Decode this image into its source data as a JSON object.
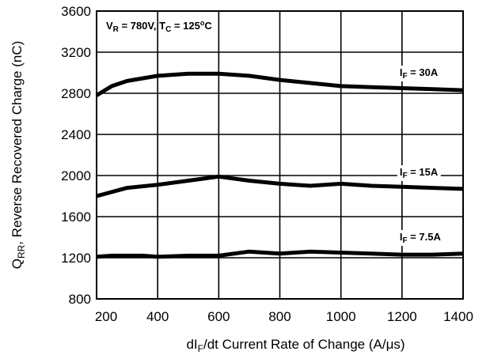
{
  "chart_data": {
    "type": "line",
    "xlabel": {
      "pre": "dI",
      "sub": "F",
      "post": "/dt Current Rate of Change (A/μs)"
    },
    "ylabel": {
      "pre": "Q",
      "sub": "RR",
      "post": ", Reverse Recovered Charge (nC)"
    },
    "xlim": [
      200,
      1400
    ],
    "ylim": [
      800,
      3600
    ],
    "xticks": [
      200,
      400,
      600,
      800,
      1000,
      1200,
      1400
    ],
    "yticks": [
      800,
      1200,
      1600,
      2000,
      2400,
      2800,
      3200,
      3600
    ],
    "grid": true,
    "conditions": {
      "vr": "V",
      "vr_sub": "R",
      "vr_val": " = 780V, T",
      "tc_sub": "C",
      "tc_val": " = 125",
      "deg": "o",
      "unit": "C"
    },
    "series": [
      {
        "label_pre": "I",
        "label_sub": "F",
        "label_post": " = 30A",
        "label_at": [
          1200,
          2970
        ],
        "x": [
          200,
          250,
          300,
          400,
          500,
          550,
          600,
          700,
          800,
          900,
          1000,
          1100,
          1200,
          1300,
          1400
        ],
        "y": [
          2780,
          2870,
          2920,
          2970,
          2990,
          2990,
          2990,
          2970,
          2930,
          2900,
          2870,
          2860,
          2850,
          2840,
          2830
        ]
      },
      {
        "label_pre": "I",
        "label_sub": "F",
        "label_post": " = 15A",
        "label_at": [
          1200,
          2000
        ],
        "x": [
          200,
          300,
          400,
          500,
          600,
          700,
          800,
          900,
          1000,
          1100,
          1200,
          1300,
          1400
        ],
        "y": [
          1800,
          1880,
          1910,
          1950,
          1990,
          1950,
          1920,
          1900,
          1920,
          1900,
          1890,
          1880,
          1870
        ]
      },
      {
        "label_pre": "I",
        "label_sub": "F",
        "label_post": " = 7.5A",
        "label_at": [
          1200,
          1370
        ],
        "x": [
          200,
          250,
          300,
          350,
          400,
          500,
          600,
          700,
          800,
          900,
          1000,
          1100,
          1200,
          1300,
          1400
        ],
        "y": [
          1210,
          1220,
          1220,
          1220,
          1210,
          1220,
          1220,
          1260,
          1240,
          1260,
          1250,
          1240,
          1230,
          1230,
          1240
        ]
      }
    ]
  }
}
